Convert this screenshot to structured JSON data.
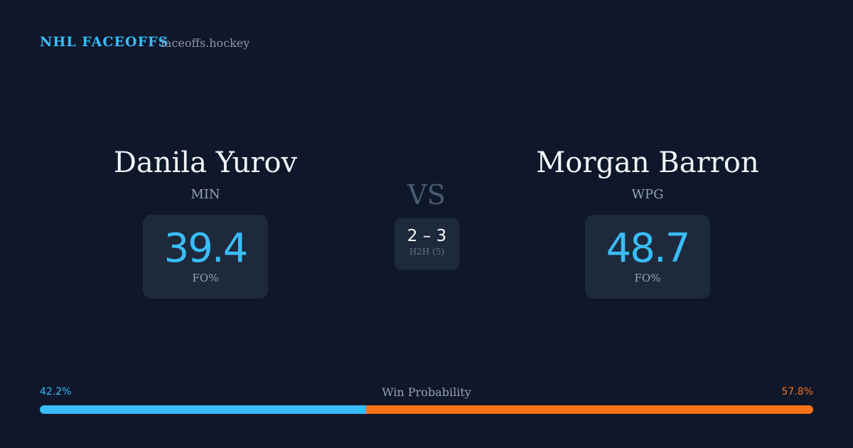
{
  "header": {
    "brand": "NHL FACEOFFS",
    "site": "faceoffs.hockey"
  },
  "players": [
    {
      "name": "Danila Yurov",
      "team": "MIN",
      "fo_pct": 39.4,
      "fo_label": "FO%"
    },
    {
      "name": "Morgan Barron",
      "team": "WPG",
      "fo_pct": 48.7,
      "fo_label": "FO%"
    }
  ],
  "vs": "VS",
  "h2h": {
    "score": "2 – 3",
    "label": "H2H (5)"
  },
  "win_probability": {
    "label": "Win Probability",
    "values": [
      42.2,
      57.8
    ],
    "value_labels": [
      "42.2%",
      "57.8%"
    ],
    "colors": [
      "#38bdf8",
      "#f97316"
    ]
  }
}
